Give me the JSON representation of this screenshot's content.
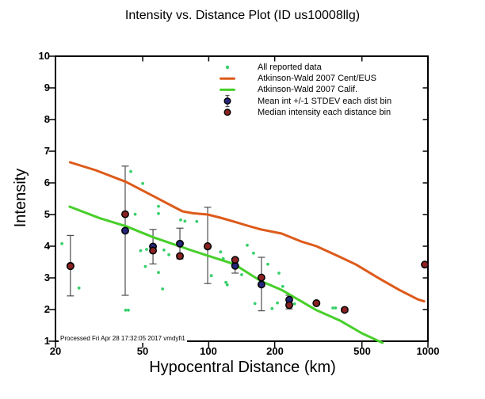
{
  "title": "Intensity vs. Distance Plot (ID us10008llg)",
  "processed_note": "Processed Fri Apr 28 17:32:05 2017 vmdyfi1",
  "colors": {
    "background": "#ffffff",
    "frame": "#000000",
    "curve_ceus": "#dd5a1a",
    "curve_calif": "#47cf2a",
    "dots": "#37d06a",
    "mean_fill": "#26267a",
    "median_fill": "#8b2222",
    "errorbar": "#4d4d4d"
  },
  "chart_data": {
    "type": "scatter",
    "title": "Intensity vs. Distance Plot (ID us10008llg)",
    "xlabel": "Hypocentral Distance (km)",
    "ylabel": "Intensity",
    "x_scale": "log",
    "xlim": [
      20,
      1000
    ],
    "ylim": [
      1,
      10
    ],
    "x_ticks": [
      20,
      50,
      100,
      200,
      500,
      1000
    ],
    "y_ticks": [
      10,
      9,
      8,
      7,
      6,
      5,
      4,
      3,
      2,
      1
    ],
    "grid": false,
    "legend_position": "top-center-inside",
    "legend": [
      {
        "label": "All reported data",
        "marker": "dot",
        "color": "#37d06a"
      },
      {
        "label": "Atkinson-Wald 2007 Cent/EUS",
        "marker": "line",
        "color": "#dd5a1a"
      },
      {
        "label": "Atkinson-Wald 2007 Calif.",
        "marker": "line",
        "color": "#47cf2a"
      },
      {
        "label": "Mean int +/-1 STDEV each dist bin",
        "marker": "circle-errorbar",
        "color": "#26267a"
      },
      {
        "label": "Median intensity each distance bin",
        "marker": "circle",
        "color": "#8b2222"
      }
    ],
    "series": {
      "all_reported": {
        "label": "All reported data",
        "points": [
          [
            21.4,
            4.08
          ],
          [
            25.6,
            2.68
          ],
          [
            44.1,
            6.36
          ],
          [
            46.2,
            5.01
          ],
          [
            50,
            5.98
          ],
          [
            59,
            5.26
          ],
          [
            59,
            5.03
          ],
          [
            48.9,
            3.86
          ],
          [
            52.1,
            3.9
          ],
          [
            51.4,
            3.36
          ],
          [
            59,
            3.17
          ],
          [
            41.8,
            1.98
          ],
          [
            43,
            1.98
          ],
          [
            62.5,
            3.88
          ],
          [
            65.8,
            3.73
          ],
          [
            61.6,
            2.65
          ],
          [
            74.5,
            4.83
          ],
          [
            77.9,
            4.79
          ],
          [
            88.2,
            4.78
          ],
          [
            113.3,
            3.82
          ],
          [
            116.5,
            3.61
          ],
          [
            102.8,
            3.07
          ],
          [
            119.8,
            2.86
          ],
          [
            121.5,
            2.78
          ],
          [
            149.9,
            4.03
          ],
          [
            160.2,
            3.78
          ],
          [
            141.4,
            3.1
          ],
          [
            162.5,
            2.19
          ],
          [
            186.1,
            3.43
          ],
          [
            205.8,
            2.21
          ],
          [
            194.6,
            2.03
          ],
          [
            209.2,
            3.15
          ],
          [
            217.5,
            2.73
          ],
          [
            246.4,
            2.18
          ],
          [
            368.6,
            2.05
          ],
          [
            378.8,
            2.05
          ]
        ]
      },
      "aw2007_ceus": {
        "label": "Atkinson-Wald 2007 Cent/EUS",
        "points": [
          [
            23.3,
            6.65
          ],
          [
            30.5,
            6.4
          ],
          [
            42,
            6.03
          ],
          [
            56,
            5.58
          ],
          [
            69,
            5.25
          ],
          [
            76,
            5.1
          ],
          [
            85,
            5.04
          ],
          [
            99,
            5.0
          ],
          [
            113,
            4.9
          ],
          [
            130,
            4.78
          ],
          [
            150,
            4.65
          ],
          [
            173,
            4.53
          ],
          [
            215,
            4.4
          ],
          [
            264,
            4.15
          ],
          [
            310,
            4.0
          ],
          [
            400,
            3.65
          ],
          [
            470,
            3.42
          ],
          [
            600,
            2.98
          ],
          [
            740,
            2.62
          ],
          [
            900,
            2.32
          ],
          [
            960,
            2.26
          ]
        ]
      },
      "aw2007_calif": {
        "label": "Atkinson-Wald 2007 Calif.",
        "points": [
          [
            23.2,
            5.25
          ],
          [
            32,
            4.88
          ],
          [
            42,
            4.63
          ],
          [
            56,
            4.28
          ],
          [
            85,
            3.85
          ],
          [
            130,
            3.44
          ],
          [
            173,
            2.9
          ],
          [
            215,
            2.62
          ],
          [
            310,
            1.98
          ],
          [
            400,
            1.64
          ],
          [
            500,
            1.25
          ],
          [
            620,
            0.95
          ]
        ]
      },
      "distance_bins": {
        "mean_label": "Mean int +/-1 STDEV each dist bin",
        "median_label": "Median intensity each distance bin",
        "bins": [
          {
            "km": 23.4,
            "mean": 3.38,
            "stdev_lo": 2.43,
            "stdev_hi": 4.34,
            "median": 3.37
          },
          {
            "km": 41.6,
            "mean": 4.49,
            "stdev_lo": 2.45,
            "stdev_hi": 6.53,
            "median": 5.01
          },
          {
            "km": 55.7,
            "mean": 3.99,
            "stdev_lo": 3.44,
            "stdev_hi": 4.53,
            "median": 3.86
          },
          {
            "km": 73.9,
            "mean": 4.08,
            "stdev_lo": 3.6,
            "stdev_hi": 4.57,
            "median": 3.69
          },
          {
            "km": 98.9,
            "mean": 3.99,
            "stdev_lo": 2.82,
            "stdev_hi": 5.23,
            "median": 4.0
          },
          {
            "km": 132,
            "mean": 3.38,
            "stdev_lo": 3.15,
            "stdev_hi": 3.61,
            "median": 3.57
          },
          {
            "km": 174,
            "mean": 2.79,
            "stdev_lo": 1.96,
            "stdev_hi": 3.65,
            "median": 3.01
          },
          {
            "km": 233,
            "mean": 2.31,
            "stdev_lo": 2.02,
            "stdev_hi": 2.45,
            "median": 2.14
          },
          {
            "km": 310,
            "mean": null,
            "stdev_lo": null,
            "stdev_hi": null,
            "median": 2.2
          },
          {
            "km": 417,
            "mean": null,
            "stdev_lo": null,
            "stdev_hi": null,
            "median": 1.99
          },
          {
            "km": 968,
            "mean": null,
            "stdev_lo": null,
            "stdev_hi": null,
            "median": 3.42
          }
        ]
      }
    }
  }
}
